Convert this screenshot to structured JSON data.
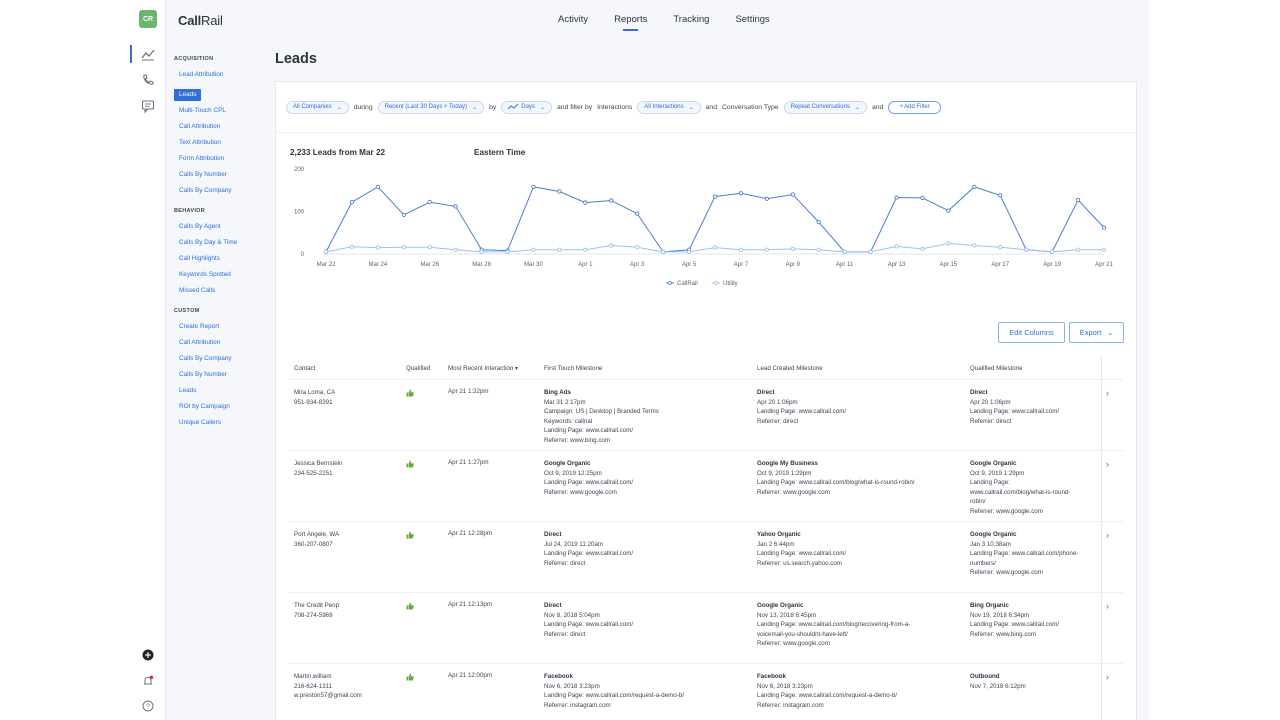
{
  "app": {
    "logo_initials": "CR",
    "brand_bold": "Call",
    "brand_rest": "Rail"
  },
  "topnav": {
    "items": [
      {
        "label": "Activity",
        "active": false
      },
      {
        "label": "Reports",
        "active": true
      },
      {
        "label": "Tracking",
        "active": false
      },
      {
        "label": "Settings",
        "active": false
      }
    ]
  },
  "sidenav": {
    "groups": [
      {
        "heading": "ACQUISITION",
        "items": [
          "Lead Attribution",
          "Leads",
          "Multi-Touch CPL",
          "Call Attribution",
          "Text Attribution",
          "Form Attribution",
          "Calls By Number",
          "Calls By Company"
        ]
      },
      {
        "heading": "BEHAVIOR",
        "items": [
          "Calls By Agent",
          "Calls By Day & Time",
          "Call Highlights",
          "Keywords Spotted",
          "Missed Calls"
        ]
      },
      {
        "heading": "CUSTOM",
        "items": [
          "Create Report",
          "Call Attribution",
          "Calls By Company",
          "Calls By Number",
          "Leads",
          "ROI by Campaign",
          "Unique Callers"
        ]
      }
    ],
    "active_item": "Leads"
  },
  "page": {
    "title": "Leads"
  },
  "filters": {
    "company": "All Companies",
    "during_label": "during",
    "date_range": "Recent (Last 30 Days + Today)",
    "by_label": "by",
    "interval": "Days",
    "filter_by_label": "and filter by",
    "interactions_label": "Interactions",
    "interactions_value": "All Interactions",
    "and_label": "and",
    "conversation_type_label": "Conversation Type",
    "conversation_type_value": "Repeat Conversations",
    "and_label_2": "and",
    "add_filter": "+ Add Filter"
  },
  "chart_data": {
    "type": "line",
    "title": "2,233 Leads from Mar 22",
    "subtitle": "Eastern Time",
    "x": [
      "Mar 22",
      "Mar 23",
      "Mar 24",
      "Mar 25",
      "Mar 26",
      "Mar 27",
      "Mar 28",
      "Mar 29",
      "Mar 30",
      "Mar 31",
      "Apr 1",
      "Apr 2",
      "Apr 3",
      "Apr 4",
      "Apr 5",
      "Apr 6",
      "Apr 7",
      "Apr 8",
      "Apr 9",
      "Apr 10",
      "Apr 11",
      "Apr 12",
      "Apr 13",
      "Apr 14",
      "Apr 15",
      "Apr 16",
      "Apr 17",
      "Apr 18",
      "Apr 19",
      "Apr 20",
      "Apr 21"
    ],
    "xticks": [
      "Mar 22",
      "Mar 24",
      "Mar 26",
      "Mar 28",
      "Mar 30",
      "Apr 1",
      "Apr 3",
      "Apr 5",
      "Apr 7",
      "Apr 9",
      "Apr 11",
      "Apr 13",
      "Apr 15",
      "Apr 17",
      "Apr 19",
      "Apr 21"
    ],
    "yticks": [
      0,
      100,
      200
    ],
    "ylim": [
      0,
      200
    ],
    "series": [
      {
        "name": "CallRail",
        "color": "#4a7fd0",
        "values": [
          5,
          122,
          158,
          92,
          122,
          112,
          10,
          8,
          158,
          147,
          121,
          126,
          95,
          5,
          10,
          135,
          143,
          130,
          140,
          75,
          5,
          5,
          133,
          132,
          102,
          158,
          138,
          10,
          5,
          127,
          62
        ]
      },
      {
        "name": "Utility",
        "color": "#9ec0ec",
        "values": [
          5,
          17,
          15,
          16,
          16,
          10,
          5,
          5,
          10,
          10,
          10,
          20,
          16,
          5,
          5,
          15,
          10,
          10,
          12,
          10,
          5,
          5,
          18,
          12,
          25,
          20,
          16,
          10,
          5,
          10,
          10
        ]
      }
    ],
    "legend": "bottom-center",
    "grid": false
  },
  "actions": {
    "edit_columns": "Edit Columns",
    "export": "Export"
  },
  "table": {
    "headers": {
      "contact": "Contact",
      "qualified": "Qualified",
      "interaction": "Most Recent Interaction ▾",
      "first_touch": "First Touch Milestone",
      "lead_created": "Lead Created Milestone",
      "qualified_milestone": "Qualified Milestone"
    },
    "rows": [
      {
        "contact": [
          "Mira Loma, CA",
          "951-934-8391"
        ],
        "interaction": "Apr 21 1:32pm",
        "first_touch": {
          "name": "Bing Ads",
          "lines": [
            "Mar 31 2:17pm",
            "Campaign: US | Desktop | Branded Terms",
            "Keywords: callrial",
            "Landing Page: www.callrail.com/",
            "Referrer: www.bing.com"
          ]
        },
        "lead_created": {
          "name": "Direct",
          "lines": [
            "Apr 20 1:06pm",
            "Landing Page: www.callrail.com/",
            "Referrer: direct"
          ]
        },
        "qualified_milestone": {
          "name": "Direct",
          "lines": [
            "Apr 20 1:06pm",
            "Landing Page: www.callrail.com/",
            "Referrer: direct"
          ]
        }
      },
      {
        "contact": [
          "Jessica Bernstein",
          "234-525-2251"
        ],
        "interaction": "Apr 21 1:27pm",
        "first_touch": {
          "name": "Google Organic",
          "lines": [
            "Oct 9, 2019 12:25pm",
            "Landing Page: www.callrail.com/",
            "Referrer: www.google.com"
          ]
        },
        "lead_created": {
          "name": "Google My Business",
          "lines": [
            "Oct 9, 2019 1:29pm",
            "Landing Page: www.callrail.com/blog/what-is-round-robin/",
            "Referrer: www.google.com"
          ]
        },
        "qualified_milestone": {
          "name": "Google Organic",
          "lines": [
            "Oct 9, 2019 1:29pm",
            "Landing Page:",
            "www.callrail.com/blog/what-is-round-",
            "robin/",
            "Referrer: www.google.com"
          ]
        }
      },
      {
        "contact": [
          "Port Angele, WA",
          "360-207-0807"
        ],
        "interaction": "Apr 21 12:28pm",
        "first_touch": {
          "name": "Direct",
          "lines": [
            "Jul 24, 2019 11:20am",
            "Landing Page: www.callrail.com/",
            "Referrer: direct"
          ]
        },
        "lead_created": {
          "name": "Yahoo Organic",
          "lines": [
            "Jan 2 6:44pm",
            "Landing Page: www.callrail.com/",
            "Referrer: us.search.yahoo.com"
          ]
        },
        "qualified_milestone": {
          "name": "Google Organic",
          "lines": [
            "Jan 3 10:38am",
            "Landing Page: www.callrail.com/phone-",
            "numbers/",
            "Referrer: www.google.com"
          ]
        }
      },
      {
        "contact": [
          "The Credit Peop",
          "708-274-5969"
        ],
        "interaction": "Apr 21 12:13pm",
        "first_touch": {
          "name": "Direct",
          "lines": [
            "Nov 8, 2018 5:04pm",
            "Landing Page: www.callrail.com/",
            "Referrer: direct"
          ]
        },
        "lead_created": {
          "name": "Google Organic",
          "lines": [
            "Nov 13, 2018 6:45pm",
            "Landing Page: www.callrail.com/blog/recovering-from-a-",
            "voicemail-you-shouldnt-have-left/",
            "Referrer: www.google.com"
          ]
        },
        "qualified_milestone": {
          "name": "Bing Organic",
          "lines": [
            "Nov 19, 2018 6:34pm",
            "Landing Page: www.callrail.com/",
            "Referrer: www.bing.com"
          ]
        }
      },
      {
        "contact": [
          "Martin,william",
          "216-624-1311",
          "w.preston57@gmail.com"
        ],
        "interaction": "Apr 21 12:00pm",
        "first_touch": {
          "name": "Facebook",
          "lines": [
            "Nov 6, 2018 3:23pm",
            "Landing Page: www.callrail.com/request-a-demo-b/",
            "Referrer: instagram.com"
          ]
        },
        "lead_created": {
          "name": "Facebook",
          "lines": [
            "Nov 6, 2018 3:23pm",
            "Landing Page: www.callrail.com/request-a-demo-b/",
            "Referrer: instagram.com"
          ]
        },
        "qualified_milestone": {
          "name": "Outbound",
          "lines": [
            "Nov 7, 2018 6:12pm"
          ]
        }
      }
    ]
  },
  "colors": {
    "accent": "#2f6fd6",
    "qualified_thumb": "#5fae3c",
    "logo_bg": "#6cb56c"
  },
  "icons": {
    "qualified": "thumbs-up-icon",
    "row_open": "chevron-right-icon"
  }
}
